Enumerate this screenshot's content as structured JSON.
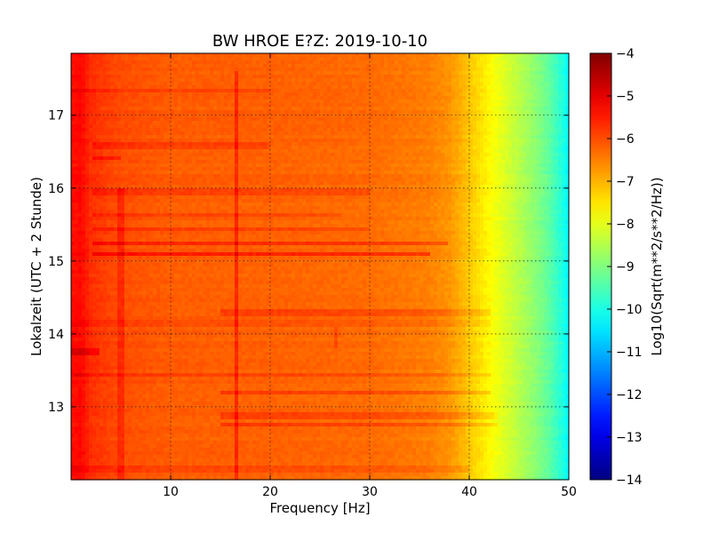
{
  "chart_data": {
    "type": "heatmap",
    "title": "BW HROE E?Z: 2019-10-10",
    "xlabel": "Frequency [Hz]",
    "ylabel": "Lokalzeit (UTC + 2 Stunde)",
    "xlim": [
      0,
      50
    ],
    "ylim": [
      17.85,
      12.0
    ],
    "y_axis_inverted": true,
    "x_ticks": [
      10,
      20,
      30,
      40,
      50
    ],
    "x_tick_labels": [
      "10",
      "20",
      "30",
      "40",
      "50"
    ],
    "y_ticks": [
      13,
      14,
      15,
      16,
      17
    ],
    "y_tick_labels": [
      "13",
      "14",
      "15",
      "16",
      "17"
    ],
    "grid": true,
    "colormap": "jet",
    "colorbar": {
      "label": "Log10(Sqrt(m**2/s**2/Hz))",
      "range": [
        -14,
        -4
      ],
      "ticks": [
        -4,
        -5,
        -6,
        -7,
        -8,
        -9,
        -10,
        -11,
        -12,
        -13,
        -14
      ],
      "tick_labels": [
        "−4",
        "−5",
        "−6",
        "−7",
        "−8",
        "−9",
        "−10",
        "−11",
        "−12",
        "−13",
        "−14"
      ],
      "placement": "right"
    },
    "spectrum_profile": {
      "frequency_hz": [
        0,
        1,
        2,
        5,
        10,
        20,
        30,
        36,
        38,
        40,
        42,
        44,
        46,
        48,
        49.5,
        50
      ],
      "log10_amplitude": [
        -5.4,
        -5.3,
        -5.7,
        -6.0,
        -6.15,
        -6.2,
        -6.3,
        -6.5,
        -6.7,
        -7.2,
        -7.7,
        -8.2,
        -8.7,
        -9.3,
        -10.0,
        -10.3
      ]
    },
    "features": {
      "vertical_lines_hz": [
        {
          "freq": 5.0,
          "delta": 0.35,
          "from": 12.0,
          "to": 16.0
        },
        {
          "freq": 16.7,
          "delta": 0.55,
          "from": 12.0,
          "to": 17.6
        },
        {
          "freq": 26.5,
          "delta": 0.3,
          "from": 13.8,
          "to": 14.1
        }
      ],
      "horizontal_bands": [
        {
          "time": 12.15,
          "f_start": 0,
          "f_end": 40,
          "delta": 0.25
        },
        {
          "time": 12.75,
          "f_start": 15,
          "f_end": 43,
          "delta": 0.45
        },
        {
          "time": 12.88,
          "f_start": 15,
          "f_end": 43,
          "delta": 0.35
        },
        {
          "time": 13.2,
          "f_start": 15,
          "f_end": 42,
          "delta": 0.4
        },
        {
          "time": 13.45,
          "f_start": 0,
          "f_end": 42,
          "delta": 0.25
        },
        {
          "time": 13.75,
          "f_start": 0,
          "f_end": 3,
          "delta": 0.5
        },
        {
          "time": 14.15,
          "f_start": 0,
          "f_end": 42,
          "delta": 0.2
        },
        {
          "time": 14.3,
          "f_start": 15,
          "f_end": 42,
          "delta": 0.35
        },
        {
          "time": 15.1,
          "f_start": 2,
          "f_end": 36,
          "delta": 0.6
        },
        {
          "time": 15.25,
          "f_start": 2,
          "f_end": 38,
          "delta": 0.5
        },
        {
          "time": 15.45,
          "f_start": 2,
          "f_end": 30,
          "delta": 0.35
        },
        {
          "time": 15.62,
          "f_start": 2,
          "f_end": 27,
          "delta": 0.3
        },
        {
          "time": 15.95,
          "f_start": 2,
          "f_end": 30,
          "delta": 0.25
        },
        {
          "time": 16.4,
          "f_start": 2,
          "f_end": 5,
          "delta": 0.45
        },
        {
          "time": 16.58,
          "f_start": 2,
          "f_end": 20,
          "delta": 0.3
        },
        {
          "time": 17.35,
          "f_start": 0,
          "f_end": 20,
          "delta": 0.2
        }
      ]
    }
  }
}
